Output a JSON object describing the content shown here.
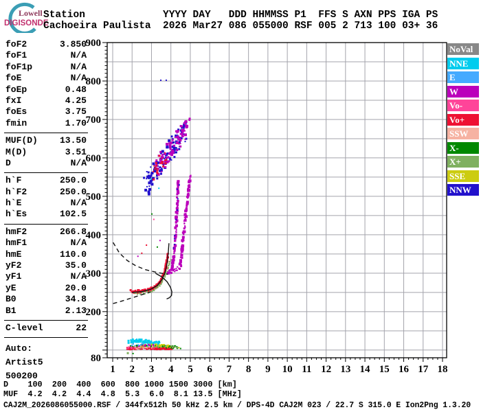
{
  "logo": {
    "line1": "Lowell",
    "line2": "DIGISONDE"
  },
  "header": {
    "line1": "Station             YYYY DAY   DDD HHMMSS P1  FFS S AXN PPS IGA PS",
    "line2": "Cachoeira Paulista  2026 Mar27 086 055000 RSF 005 2 713 100 03+ 36"
  },
  "params": {
    "groups": [
      [
        {
          "label": "foF2",
          "value": "3.850"
        },
        {
          "label": "foF1",
          "value": "N/A"
        },
        {
          "label": "foF1p",
          "value": "N/A"
        },
        {
          "label": "foE",
          "value": "N/A"
        },
        {
          "label": "foEp",
          "value": "0.48"
        },
        {
          "label": "fxI",
          "value": "4.25"
        },
        {
          "label": "foEs",
          "value": "3.75"
        },
        {
          "label": "fmin",
          "value": "1.70"
        }
      ],
      [
        {
          "label": "MUF(D)",
          "value": "13.50"
        },
        {
          "label": "M(D)",
          "value": "3.51"
        },
        {
          "label": "D",
          "value": "N/A"
        }
      ],
      [
        {
          "label": "h`F",
          "value": "250.0"
        },
        {
          "label": "h`F2",
          "value": "250.0"
        },
        {
          "label": "h`E",
          "value": "N/A"
        },
        {
          "label": "h`Es",
          "value": "102.5"
        }
      ],
      [
        {
          "label": "hmF2",
          "value": "266.8"
        },
        {
          "label": "hmF1",
          "value": "N/A"
        },
        {
          "label": "hmE",
          "value": "110.0"
        },
        {
          "label": "yF2",
          "value": "35.0"
        },
        {
          "label": "yF1",
          "value": "N/A"
        },
        {
          "label": "yE",
          "value": "20.0"
        },
        {
          "label": "B0",
          "value": "34.8"
        },
        {
          "label": "B1",
          "value": "2.13"
        }
      ],
      [
        {
          "label": "C-level",
          "value": "22"
        }
      ]
    ],
    "auto_lines": [
      "Auto:",
      "Artist5",
      "500200"
    ]
  },
  "legend": {
    "items": [
      {
        "label": "NoVal",
        "color": "#888888"
      },
      {
        "label": "NNE",
        "color": "#00CCEE"
      },
      {
        "label": "E",
        "color": "#44AAFF"
      },
      {
        "label": "W",
        "color": "#BB00BB"
      },
      {
        "label": "Vo-",
        "color": "#FF4499"
      },
      {
        "label": "Vo+",
        "color": "#EE1133"
      },
      {
        "label": "SSW",
        "color": "#F6B2A2"
      },
      {
        "label": "X-",
        "color": "#008800"
      },
      {
        "label": "X+",
        "color": "#7FB060"
      },
      {
        "label": "SSE",
        "color": "#CCCC11"
      },
      {
        "label": "NNW",
        "color": "#2211CC"
      }
    ]
  },
  "footer": {
    "d_line": "D    100  200  400  600  800 1000 1500 3000 [km]",
    "muf_line": "MUF  4.2  4.2  4.4  4.8  5.3  6.0  8.1 13.5 [MHz]",
    "info_line": "CAJ2M_2026086055000.RSF / 344fx512h 50 kHz 2.5 km / DPS-4D CAJ2M 023 / 22.7 S 315.0 E Ion2Png 1.3.20"
  },
  "chart_data": {
    "type": "scatter",
    "title": "Digisonde ionogram, Cachoeira Paulista, 2026 day 086 05:50:00",
    "x_axis": {
      "ticks": [
        1,
        2,
        3,
        4,
        5,
        6,
        7,
        8,
        9,
        10,
        11,
        12,
        13,
        14,
        15,
        16,
        17,
        18
      ],
      "range": [
        1,
        18
      ],
      "unit": "MHz"
    },
    "y_axis": {
      "ticks": [
        900,
        800,
        700,
        600,
        500,
        400,
        300,
        200,
        80
      ],
      "range": [
        80,
        900
      ],
      "unit": "km"
    },
    "grid": {
      "x_step_mhz": 1,
      "y_step_km": 50,
      "color": "#a3a3ab"
    },
    "colors": {
      "noval": "#888888",
      "nne": "#00CCEE",
      "e": "#44AAFF",
      "w": "#BB00BB",
      "vo_minus": "#FF4499",
      "vo_plus": "#EE1133",
      "ssw": "#F6B2A2",
      "x_minus": "#008800",
      "x_plus": "#7FB060",
      "sse": "#CCCC11",
      "nnw": "#2211CC"
    },
    "bands": [
      {
        "name": "f-trace-o-mode-red",
        "color": "vo_plus",
        "path": [
          [
            1.95,
            252
          ],
          [
            2.4,
            252
          ],
          [
            2.85,
            256
          ],
          [
            3.2,
            264
          ],
          [
            3.45,
            277
          ],
          [
            3.63,
            296
          ],
          [
            3.76,
            322
          ],
          [
            3.84,
            352
          ]
        ],
        "n": 170,
        "jitter": [
          0.03,
          4
        ],
        "size": [
          2,
          3
        ]
      },
      {
        "name": "f-trace-x-plus-green",
        "color": "x_plus",
        "path": [
          [
            2.05,
            247
          ],
          [
            2.6,
            249
          ],
          [
            3.05,
            254
          ],
          [
            3.4,
            266
          ],
          [
            3.65,
            288
          ],
          [
            3.85,
            314
          ],
          [
            3.97,
            334
          ]
        ],
        "n": 50,
        "jitter": [
          0.03,
          3
        ],
        "size": [
          2,
          2
        ]
      },
      {
        "name": "f-branch-left-magenta",
        "color": "w",
        "path": [
          [
            4.08,
            312
          ],
          [
            4.18,
            358
          ],
          [
            4.27,
            418
          ],
          [
            4.33,
            478
          ],
          [
            4.4,
            548
          ]
        ],
        "n": 85,
        "jitter": [
          0.035,
          8
        ],
        "size": [
          2,
          4
        ]
      },
      {
        "name": "f-branch-right-magenta",
        "color": "w",
        "path": [
          [
            4.48,
            318
          ],
          [
            4.6,
            372
          ],
          [
            4.73,
            436
          ],
          [
            4.87,
            500
          ],
          [
            5.0,
            552
          ]
        ],
        "n": 80,
        "jitter": [
          0.035,
          8
        ],
        "size": [
          2,
          4
        ]
      },
      {
        "name": "f-branch-base-magenta",
        "color": "w",
        "path": [
          [
            3.84,
            300
          ],
          [
            4.05,
            306
          ],
          [
            4.42,
            314
          ]
        ],
        "n": 24,
        "jitter": [
          0.05,
          6
        ],
        "size": [
          2,
          3
        ]
      },
      {
        "name": "f-branch-blue-sprinkle",
        "color": "nnw",
        "path": [
          [
            4.15,
            360
          ],
          [
            4.3,
            450
          ],
          [
            4.42,
            520
          ]
        ],
        "n": 10,
        "jitter": [
          0.05,
          25
        ],
        "size": [
          2,
          2
        ]
      },
      {
        "name": "second-hop-blue",
        "color": "nnw",
        "path": [
          [
            2.7,
            528
          ],
          [
            3.1,
            558
          ],
          [
            3.5,
            588
          ],
          [
            3.9,
            615
          ],
          [
            4.3,
            645
          ],
          [
            4.72,
            672
          ]
        ],
        "n": 125,
        "jitter": [
          0.16,
          26
        ],
        "size": [
          2,
          4
        ]
      },
      {
        "name": "second-hop-magenta",
        "color": "w",
        "path": [
          [
            3.3,
            572
          ],
          [
            3.72,
            602
          ],
          [
            4.12,
            632
          ],
          [
            4.52,
            662
          ],
          [
            4.88,
            692
          ]
        ],
        "n": 78,
        "jitter": [
          0.13,
          24
        ],
        "size": [
          2,
          4
        ]
      },
      {
        "name": "second-hop-red",
        "color": "vo_plus",
        "path": [
          [
            3.05,
            560
          ],
          [
            3.38,
            582
          ],
          [
            3.72,
            602
          ]
        ],
        "n": 24,
        "jitter": [
          0.1,
          20
        ],
        "size": [
          2,
          3
        ]
      },
      {
        "name": "es-red",
        "color": "vo_plus",
        "path": [
          [
            1.72,
            104
          ],
          [
            2.3,
            105
          ],
          [
            3.0,
            105
          ],
          [
            3.7,
            105
          ],
          [
            4.1,
            106
          ]
        ],
        "n": 160,
        "jitter": [
          0.05,
          3
        ],
        "size": [
          2,
          3
        ]
      },
      {
        "name": "es-pink",
        "color": "vo_minus",
        "path": [
          [
            1.75,
            107
          ],
          [
            2.4,
            108
          ],
          [
            3.2,
            108
          ]
        ],
        "n": 36,
        "jitter": [
          0.06,
          2.5
        ],
        "size": [
          2,
          2
        ]
      },
      {
        "name": "es-cyan",
        "color": "nne",
        "path": [
          [
            1.85,
            122
          ],
          [
            2.35,
            125
          ],
          [
            2.9,
            121
          ],
          [
            3.45,
            117
          ]
        ],
        "n": 85,
        "jitter": [
          0.09,
          4
        ],
        "size": [
          2,
          3
        ]
      },
      {
        "name": "es-yellow",
        "color": "sse",
        "path": [
          [
            2.5,
            111
          ],
          [
            3.2,
            112
          ],
          [
            4.0,
            109
          ]
        ],
        "n": 48,
        "jitter": [
          0.12,
          3
        ],
        "size": [
          2,
          3
        ]
      },
      {
        "name": "es-darkgreen",
        "color": "x_minus",
        "path": [
          [
            1.95,
            109
          ],
          [
            2.8,
            112
          ],
          [
            3.9,
            108
          ],
          [
            4.35,
            107
          ]
        ],
        "n": 40,
        "jitter": [
          0.14,
          3.5
        ],
        "size": [
          2,
          2
        ]
      },
      {
        "name": "es-green",
        "color": "x_plus",
        "path": [
          [
            2.2,
            107
          ],
          [
            3.3,
            110
          ],
          [
            4.5,
            108
          ]
        ],
        "n": 22,
        "jitter": [
          0.15,
          3
        ],
        "size": [
          2,
          2
        ]
      },
      {
        "name": "es-blue",
        "color": "e",
        "path": [
          [
            2.05,
            114
          ],
          [
            2.9,
            114
          ]
        ],
        "n": 12,
        "jitter": [
          0.12,
          3
        ],
        "size": [
          2,
          2
        ]
      },
      {
        "name": "es-salmon",
        "color": "ssw",
        "path": [
          [
            2.15,
            106
          ],
          [
            3.05,
            108
          ]
        ],
        "n": 14,
        "jitter": [
          0.12,
          2.5
        ],
        "size": [
          2,
          2
        ]
      },
      {
        "name": "es-magenta",
        "color": "w",
        "path": [
          [
            2.45,
            112
          ],
          [
            3.15,
            113
          ]
        ],
        "n": 10,
        "jitter": [
          0.1,
          2.5
        ],
        "size": [
          2,
          2
        ]
      }
    ],
    "curves": [
      {
        "name": "transmission-curve-upper-dashed",
        "style": "dashed",
        "points": [
          [
            1.02,
            380
          ],
          [
            1.35,
            352
          ],
          [
            1.75,
            333
          ],
          [
            2.2,
            319
          ],
          [
            2.7,
            309
          ],
          [
            3.2,
            303
          ],
          [
            3.6,
            299
          ],
          [
            3.85,
            297
          ]
        ]
      },
      {
        "name": "transmission-curve-lower-dashed",
        "style": "dashed",
        "points": [
          [
            1.02,
            221
          ],
          [
            1.5,
            228
          ],
          [
            2.0,
            236
          ],
          [
            2.5,
            244
          ],
          [
            2.95,
            251
          ]
        ]
      },
      {
        "name": "artist-fitted-trace-solid",
        "style": "solid",
        "points": [
          [
            2.0,
            250
          ],
          [
            2.5,
            252
          ],
          [
            2.95,
            258
          ],
          [
            3.3,
            268
          ],
          [
            3.55,
            284
          ],
          [
            3.7,
            302
          ],
          [
            3.8,
            325
          ],
          [
            3.86,
            352
          ],
          [
            3.9,
            378
          ]
        ]
      },
      {
        "name": "tangent-hook-solid",
        "style": "solid",
        "points": [
          [
            3.2,
            300
          ],
          [
            3.55,
            290
          ],
          [
            3.8,
            278
          ],
          [
            3.97,
            264
          ],
          [
            4.05,
            252
          ],
          [
            4.03,
            242
          ],
          [
            3.92,
            236
          ],
          [
            3.78,
            233
          ]
        ]
      }
    ],
    "points": [
      [
        3.48,
        802,
        "nnw",
        2
      ],
      [
        3.76,
        802,
        "nnw",
        2
      ],
      [
        4.97,
        702,
        "w",
        3
      ],
      [
        3.44,
        385,
        "w",
        2
      ],
      [
        2.74,
        373,
        "vo_plus",
        2
      ],
      [
        2.5,
        352,
        "vo_plus",
        2
      ],
      [
        3.02,
        454,
        "x_minus",
        2
      ],
      [
        2.3,
        344,
        "w",
        2
      ],
      [
        3.3,
        368,
        "x_minus",
        2
      ],
      [
        3.12,
        440,
        "vo_minus",
        2
      ],
      [
        1.78,
        92,
        "x_plus",
        3
      ],
      [
        2.05,
        91,
        "x_minus",
        2
      ],
      [
        4.5,
        104,
        "x_minus",
        2
      ],
      [
        4.42,
        106,
        "sse",
        2
      ],
      [
        3.38,
        521,
        "nne",
        2
      ],
      [
        2.95,
        545,
        "nne",
        2
      ]
    ]
  }
}
